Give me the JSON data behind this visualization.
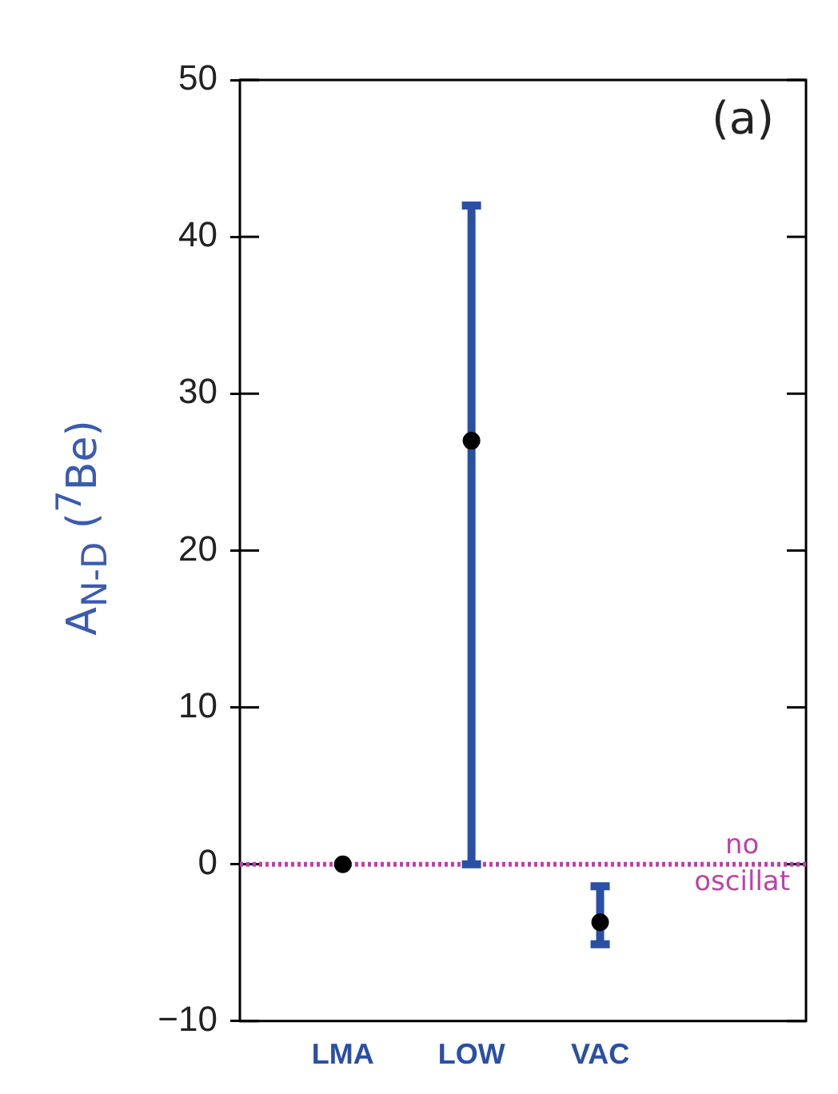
{
  "chart_data": {
    "type": "scatter",
    "ylabel": "A$_{N-D}$ ($^{7}$Be)",
    "categories": [
      "LMA",
      "LOW",
      "VAC"
    ],
    "series": [
      {
        "color": "#000000",
        "values": [
          0,
          27,
          -3.7
        ],
        "errors": [
          null,
          [
            0,
            42
          ],
          [
            -5.1,
            -1.4
          ]
        ]
      }
    ],
    "marker": "circle",
    "ylim": [
      -10,
      50
    ],
    "yticks": [
      -10,
      0,
      10,
      20,
      30,
      40,
      50
    ],
    "ref_lines": [
      {
        "axis": "y",
        "value": 0,
        "label": "no oscillat",
        "color": "#c040a8",
        "line_style": "dotted"
      }
    ],
    "annotations": [
      "(a)"
    ]
  }
}
